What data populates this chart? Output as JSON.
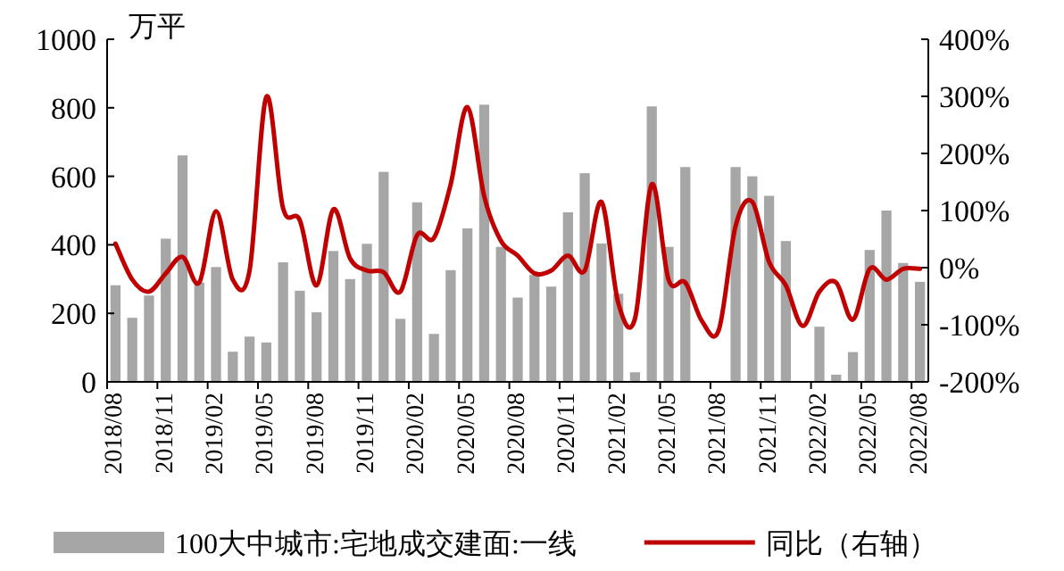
{
  "chart_data": {
    "type": "bar",
    "ylabel": "万平",
    "categories": [
      "2018/08",
      null,
      null,
      "2018/11",
      null,
      null,
      "2019/02",
      null,
      null,
      "2019/05",
      null,
      null,
      "2019/08",
      null,
      null,
      "2019/11",
      null,
      null,
      "2020/02",
      null,
      null,
      "2020/05",
      null,
      null,
      "2020/08",
      null,
      null,
      "2020/11",
      null,
      null,
      "2021/02",
      null,
      null,
      "2021/05",
      null,
      null,
      "2021/08",
      null,
      null,
      "2021/11",
      null,
      null,
      "2022/02",
      null,
      null,
      "2022/05",
      null,
      null,
      "2022/08"
    ],
    "series": [
      {
        "name": "100大中城市:宅地成交建面:一线",
        "color": "#a6a6a6",
        "values": [
          282,
          187,
          252,
          418,
          661,
          290,
          335,
          88,
          132,
          115,
          349,
          266,
          203,
          382,
          300,
          403,
          613,
          184,
          524,
          140,
          326,
          448,
          809,
          394,
          246,
          312,
          278,
          495,
          609,
          404,
          257,
          28,
          804,
          394,
          627,
          null,
          null,
          627,
          600,
          543,
          411,
          null,
          161,
          21,
          87,
          385,
          500,
          347,
          292
        ]
      },
      {
        "name": "同比（右轴）",
        "type": "line",
        "axis": "y2",
        "color": "#c00000",
        "values": [
          42,
          -21,
          -42,
          -10,
          19,
          -26,
          99,
          -21,
          -5,
          299,
          104,
          83,
          -31,
          102,
          16,
          -5,
          -8,
          -42,
          57,
          52,
          146,
          281,
          125,
          47,
          21,
          -10,
          -5,
          21,
          -5,
          115,
          -62,
          -89,
          146,
          -21,
          -26,
          -94,
          -109,
          73,
          115,
          10,
          -31,
          -102,
          -42,
          -26,
          -91,
          -2,
          -21,
          -2,
          -2
        ]
      }
    ],
    "ylim": [
      0,
      1000
    ],
    "yticks": [
      0,
      200,
      400,
      600,
      800,
      1000
    ],
    "y2lim": [
      -200,
      400
    ],
    "y2ticks": [
      {
        "value": -200,
        "label": "-200%"
      },
      {
        "value": -100,
        "label": "-100%"
      },
      {
        "value": 0,
        "label": "0%"
      },
      {
        "value": 100,
        "label": "100%"
      },
      {
        "value": 200,
        "label": "200%"
      },
      {
        "value": 300,
        "label": "300%"
      },
      {
        "value": 400,
        "label": "400%"
      }
    ],
    "legend": "bottom"
  }
}
